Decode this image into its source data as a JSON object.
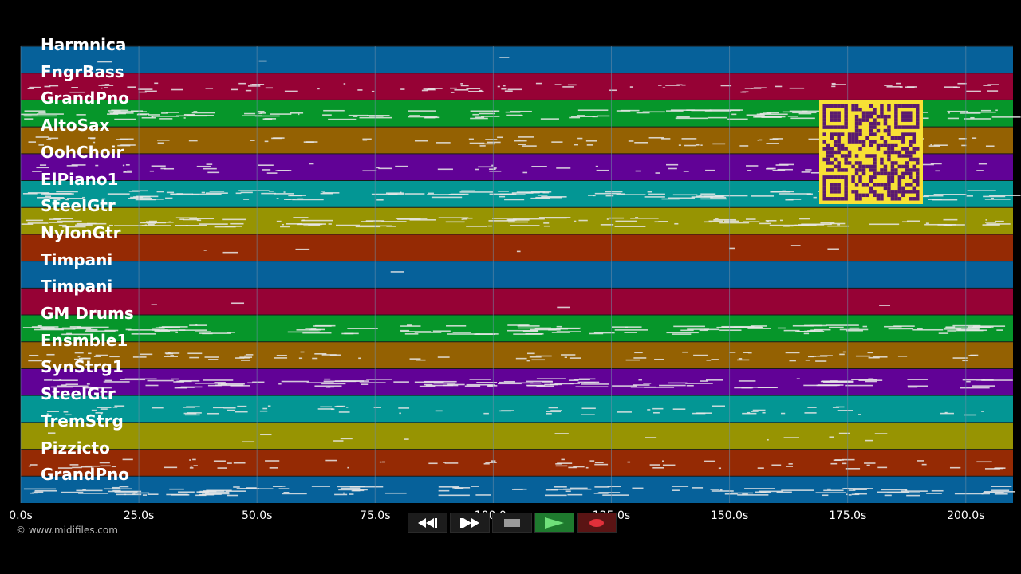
{
  "app": {
    "copyright": "© www.midifiles.com"
  },
  "colors": {
    "background": "#000000",
    "track_palette": [
      "#06619a",
      "#960235",
      "#06962a",
      "#946102",
      "#610296",
      "#039694",
      "#979402",
      "#952a04"
    ],
    "grid_line": "#6f8ea8",
    "note": "#e8e8e8",
    "qr_bg": "#f7e135",
    "qr_fg": "#5a1a70"
  },
  "tracks": [
    {
      "name": "Harmnica",
      "density": 0.02
    },
    {
      "name": "FngrBass",
      "density": 0.6
    },
    {
      "name": "GrandPno",
      "density": 0.9
    },
    {
      "name": "AltoSax",
      "density": 0.5
    },
    {
      "name": "OohChoir",
      "density": 0.5
    },
    {
      "name": "ElPiano1",
      "density": 0.9
    },
    {
      "name": "SteelGtr",
      "density": 0.9
    },
    {
      "name": "NylonGtr",
      "density": 0.05
    },
    {
      "name": "Timpani",
      "density": 0.01
    },
    {
      "name": "Timpani",
      "density": 0.03
    },
    {
      "name": "GM Drums",
      "density": 0.95
    },
    {
      "name": "Ensmble1",
      "density": 0.6
    },
    {
      "name": "SynStrg1",
      "density": 0.9
    },
    {
      "name": "SteelGtr",
      "density": 0.5
    },
    {
      "name": "TremStrg",
      "density": 0.1
    },
    {
      "name": "Pizzicto",
      "density": 0.5
    },
    {
      "name": "GrandPno",
      "density": 0.9
    }
  ],
  "timeline": {
    "ticks": [
      "0.0s",
      "25.0s",
      "50.0s",
      "75.0s",
      "100.0s",
      "125.0s",
      "150.0s",
      "175.0s",
      "200.0s"
    ],
    "max_seconds": 210
  },
  "transport": {
    "rewind": "rewind-icon",
    "fast_forward": "fast-forward-icon",
    "stop": "stop-icon",
    "play": "play-icon",
    "record": "record-icon"
  }
}
